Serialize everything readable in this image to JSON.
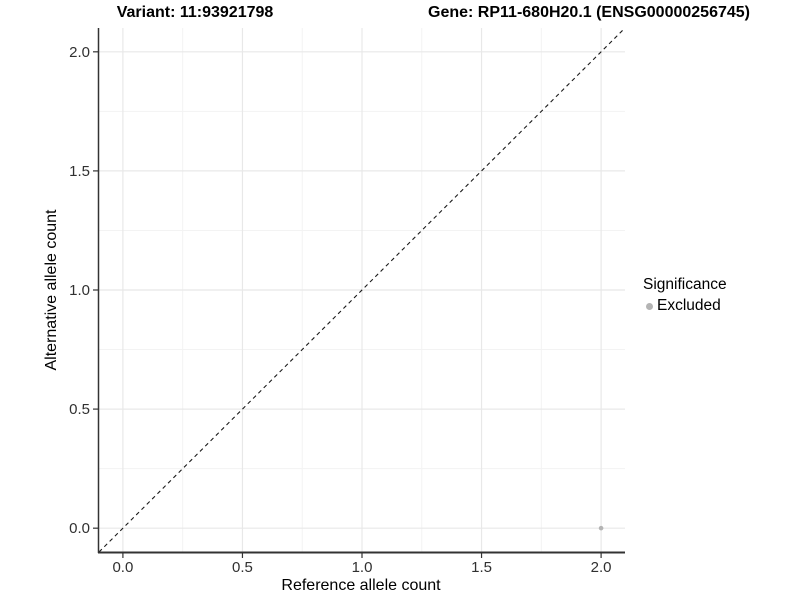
{
  "titles": {
    "variant": "Variant: 11:93921798",
    "gene": "Gene: RP11-680H20.1 (ENSG00000256745)"
  },
  "chart_data": {
    "type": "scatter",
    "xlabel": "Reference allele count",
    "ylabel": "Alternative allele count",
    "xlim": [
      -0.1,
      2.1
    ],
    "ylim": [
      -0.1,
      2.1
    ],
    "xticks": [
      0.0,
      0.5,
      1.0,
      1.5,
      2.0
    ],
    "yticks": [
      0.0,
      0.5,
      1.0,
      1.5,
      2.0
    ],
    "minor_ticks": [
      0.25,
      0.75,
      1.25,
      1.75
    ],
    "grid": true,
    "series": [
      {
        "name": "Excluded",
        "color": "#b4b4b4",
        "points": [
          {
            "x": 2.0,
            "y": 0.0
          }
        ]
      }
    ],
    "reference_line": {
      "type": "identity",
      "style": "dashed",
      "color": "#1a1a1a"
    },
    "legend": {
      "position": "right",
      "title": "Significance",
      "entries": [
        {
          "label": "Excluded",
          "color": "#b4b4b4"
        }
      ]
    }
  },
  "colors": {
    "background": "#ffffff",
    "axis_line": "#333333",
    "tick_label": "#303030",
    "grid_major": "#e8e8e8",
    "grid_minor": "#f3f3f3",
    "point": "#b4b4b4",
    "dashed_line": "#1a1a1a"
  }
}
